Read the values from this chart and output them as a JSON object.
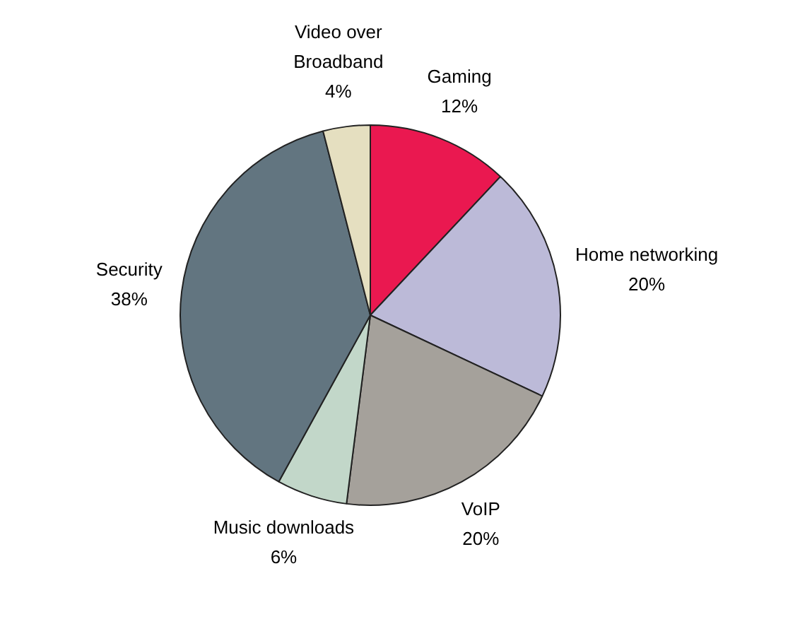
{
  "chart_data": {
    "type": "pie",
    "categories": [
      "Gaming",
      "Home networking",
      "VoIP",
      "Music downloads",
      "Security",
      "Video over Broadband"
    ],
    "values": [
      12,
      20,
      20,
      6,
      38,
      4
    ],
    "colors": [
      "#ea1850",
      "#bcbad8",
      "#a5a19b",
      "#c2d7c9",
      "#627580",
      "#e5dfc0"
    ],
    "value_labels": [
      "12%",
      "20%",
      "20%",
      "6%",
      "38%",
      "4%"
    ],
    "legend": false
  }
}
